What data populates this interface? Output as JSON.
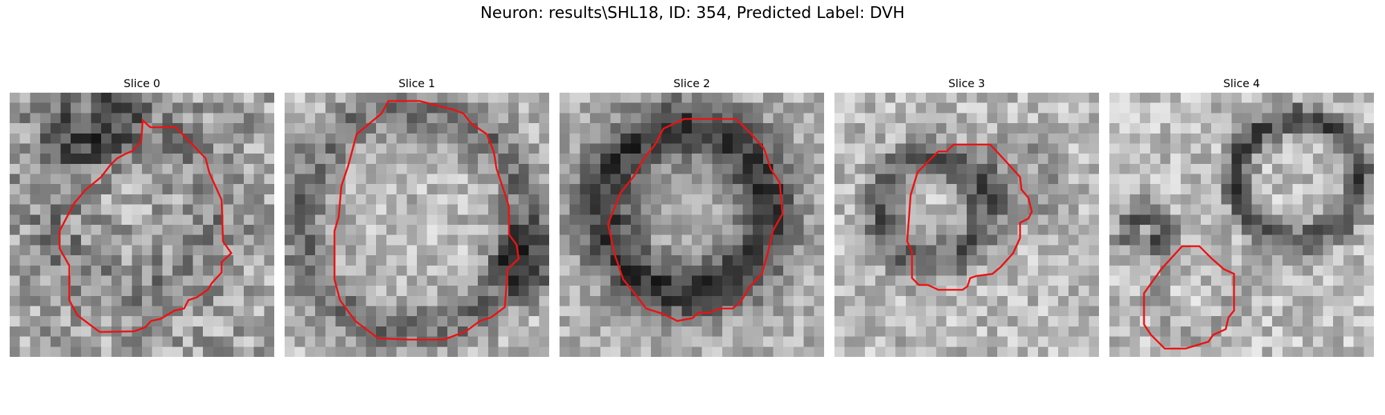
{
  "figure": {
    "title": "Neuron: results\\SHL18, ID: 354, Predicted Label: DVH",
    "contour_color": "#ee1111"
  },
  "panels": [
    {
      "title": "Slice 0"
    },
    {
      "title": "Slice 1"
    },
    {
      "title": "Slice 2"
    },
    {
      "title": "Slice 3"
    },
    {
      "title": "Slice 4"
    }
  ]
}
